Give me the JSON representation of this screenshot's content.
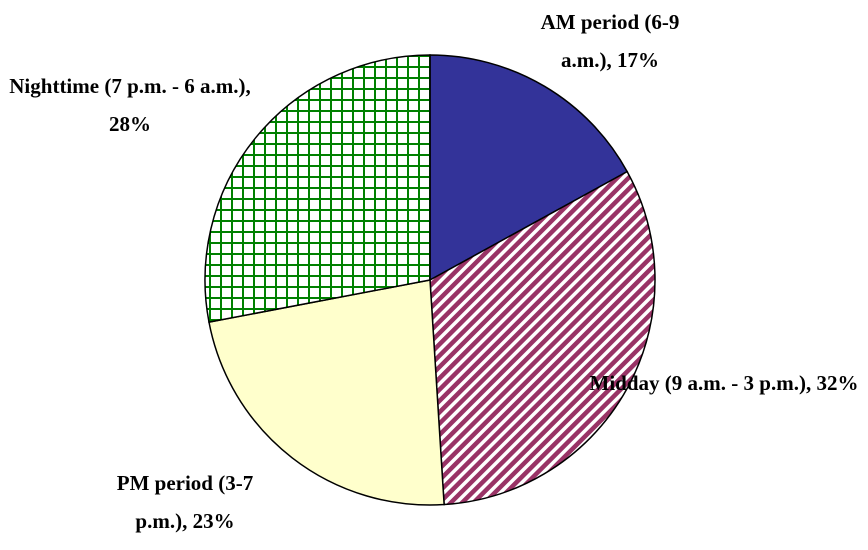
{
  "chart_data": {
    "type": "pie",
    "values": [
      17,
      32,
      23,
      28
    ],
    "value_labels": [
      "AM period (6-9 a.m.), 17%",
      "Midday (9 a.m. - 3 p.m.), 32%",
      "PM period (3-7 p.m.), 23%",
      "Nighttime (7 p.m. - 6 a.m.), 28%"
    ],
    "colors": [
      "#333399",
      "#993366",
      "#ffffcc",
      "#008000"
    ],
    "fills": [
      "solid",
      "diagonal",
      "solid",
      "grid"
    ]
  }
}
